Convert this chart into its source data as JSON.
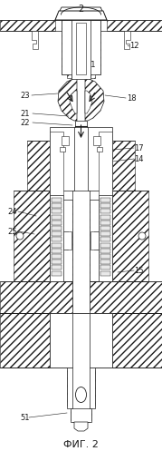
{
  "title": "ФИГ. 2",
  "label_2": "2",
  "label_11": "11",
  "label_12": "12",
  "label_14": "14",
  "label_15": "15",
  "label_17": "17",
  "label_18": "18",
  "label_21": "21",
  "label_22": "22",
  "label_23": "23",
  "label_24": "24",
  "label_25": "25",
  "label_51": "51",
  "bg_color": "#ffffff",
  "line_color": "#1a1a1a",
  "figsize": [
    1.79,
    4.97
  ],
  "dpi": 100
}
